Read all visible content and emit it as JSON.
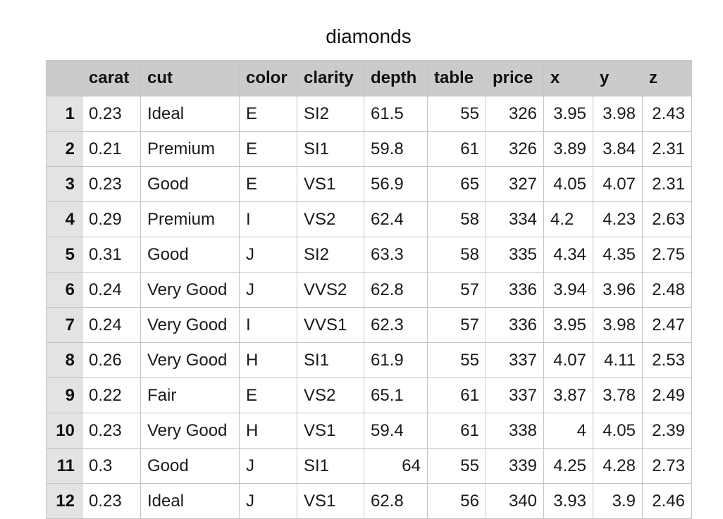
{
  "title": "diamonds",
  "columns": [
    {
      "label": "carat",
      "align": "left"
    },
    {
      "label": "cut",
      "align": "left"
    },
    {
      "label": "color",
      "align": "left"
    },
    {
      "label": "clarity",
      "align": "left"
    },
    {
      "label": "depth",
      "align": "left"
    },
    {
      "label": "table",
      "align": "right"
    },
    {
      "label": "price",
      "align": "right"
    },
    {
      "label": "x",
      "align": "right"
    },
    {
      "label": "y",
      "align": "left"
    },
    {
      "label": "z",
      "align": "left"
    }
  ],
  "rows": [
    {
      "num": "1",
      "cells": [
        "0.23",
        "Ideal",
        "E",
        "SI2",
        "61.5",
        "55",
        "326",
        "3.95",
        "3.98",
        "2.43"
      ]
    },
    {
      "num": "2",
      "cells": [
        "0.21",
        "Premium",
        "E",
        "SI1",
        "59.8",
        "61",
        "326",
        "3.89",
        "3.84",
        "2.31"
      ]
    },
    {
      "num": "3",
      "cells": [
        "0.23",
        "Good",
        "E",
        "VS1",
        "56.9",
        "65",
        "327",
        "4.05",
        "4.07",
        "2.31"
      ]
    },
    {
      "num": "4",
      "cells": [
        "0.29",
        "Premium",
        "I",
        "VS2",
        "62.4",
        "58",
        "334",
        "4.2",
        "4.23",
        "2.63"
      ]
    },
    {
      "num": "5",
      "cells": [
        "0.31",
        "Good",
        "J",
        "SI2",
        "63.3",
        "58",
        "335",
        "4.34",
        "4.35",
        "2.75"
      ]
    },
    {
      "num": "6",
      "cells": [
        "0.24",
        "Very Good",
        "J",
        "VVS2",
        "62.8",
        "57",
        "336",
        "3.94",
        "3.96",
        "2.48"
      ]
    },
    {
      "num": "7",
      "cells": [
        "0.24",
        "Very Good",
        "I",
        "VVS1",
        "62.3",
        "57",
        "336",
        "3.95",
        "3.98",
        "2.47"
      ]
    },
    {
      "num": "8",
      "cells": [
        "0.26",
        "Very Good",
        "H",
        "SI1",
        "61.9",
        "55",
        "337",
        "4.07",
        "4.11",
        "2.53"
      ]
    },
    {
      "num": "9",
      "cells": [
        "0.22",
        "Fair",
        "E",
        "VS2",
        "65.1",
        "61",
        "337",
        "3.87",
        "3.78",
        "2.49"
      ]
    },
    {
      "num": "10",
      "cells": [
        "0.23",
        "Very Good",
        "H",
        "VS1",
        "59.4",
        "61",
        "338",
        "4",
        "4.05",
        "2.39"
      ]
    },
    {
      "num": "11",
      "cells": [
        "0.3",
        "Good",
        "J",
        "SI1",
        "64",
        "55",
        "339",
        "4.25",
        "4.28",
        "2.73"
      ]
    },
    {
      "num": "12",
      "cells": [
        "0.23",
        "Ideal",
        "J",
        "VS1",
        "62.8",
        "56",
        "340",
        "3.93",
        "3.9",
        "2.46"
      ]
    }
  ],
  "cell_align": [
    [
      "txt",
      "txt",
      "txt",
      "txt",
      "txt",
      "num",
      "num",
      "num",
      "num",
      "num"
    ],
    [
      "txt",
      "txt",
      "txt",
      "txt",
      "txt",
      "num",
      "num",
      "num",
      "num",
      "num"
    ],
    [
      "txt",
      "txt",
      "txt",
      "txt",
      "txt",
      "num",
      "num",
      "num",
      "num",
      "num"
    ],
    [
      "txt",
      "txt",
      "txt",
      "txt",
      "txt",
      "num",
      "num",
      "txt",
      "num",
      "num"
    ],
    [
      "txt",
      "txt",
      "txt",
      "txt",
      "txt",
      "num",
      "num",
      "num",
      "num",
      "num"
    ],
    [
      "txt",
      "txt",
      "txt",
      "txt",
      "txt",
      "num",
      "num",
      "num",
      "num",
      "num"
    ],
    [
      "txt",
      "txt",
      "txt",
      "txt",
      "txt",
      "num",
      "num",
      "num",
      "num",
      "num"
    ],
    [
      "txt",
      "txt",
      "txt",
      "txt",
      "txt",
      "num",
      "num",
      "num",
      "num",
      "num"
    ],
    [
      "txt",
      "txt",
      "txt",
      "txt",
      "txt",
      "num",
      "num",
      "num",
      "num",
      "num"
    ],
    [
      "txt",
      "txt",
      "txt",
      "txt",
      "txt",
      "num",
      "num",
      "num",
      "num",
      "num"
    ],
    [
      "txt",
      "txt",
      "txt",
      "txt",
      "num",
      "num",
      "num",
      "num",
      "num",
      "num"
    ],
    [
      "txt",
      "txt",
      "txt",
      "txt",
      "txt",
      "num",
      "num",
      "num",
      "num",
      "num"
    ]
  ]
}
